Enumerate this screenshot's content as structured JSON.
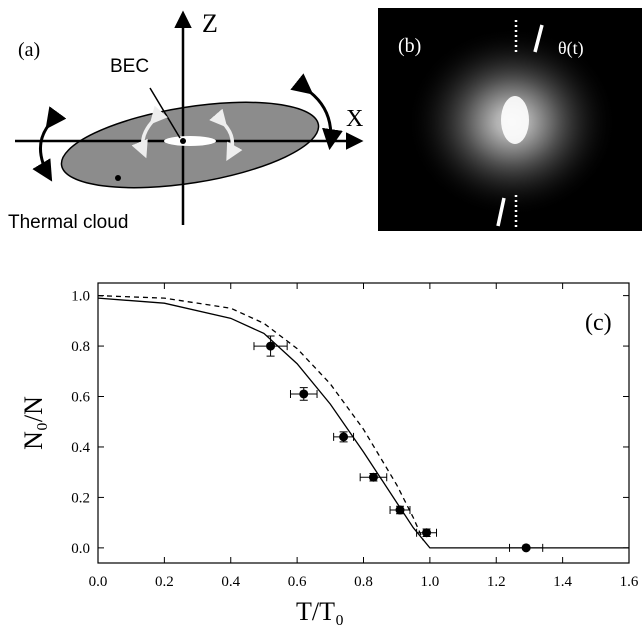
{
  "panel_a": {
    "label": "(a)",
    "axis_z": "Z",
    "axis_x": "X",
    "bec": "BEC",
    "thermal": "Thermal cloud"
  },
  "panel_b": {
    "label": "(b)",
    "angle": "θ(t)"
  },
  "chart_data": {
    "type": "scatter",
    "label": "(c)",
    "xlabel": "T/T₀",
    "ylabel": "N₀/N",
    "xlim": [
      0,
      1.6
    ],
    "ylim": [
      -0.06,
      1.05
    ],
    "xticks": [
      {
        "value": 0,
        "label": "0.0"
      },
      0.2,
      0.4,
      0.6,
      0.8,
      {
        "value": 1,
        "label": "1.0"
      },
      1.2,
      1.4,
      1.6
    ],
    "yticks": [
      {
        "value": 0,
        "label": "0.0"
      },
      0.2,
      0.4,
      0.6,
      0.8,
      {
        "value": 1,
        "label": "1.0"
      }
    ],
    "color": "#000000",
    "series": [
      {
        "type": "scatter",
        "x": [
          0.52,
          0.62,
          0.74,
          0.83,
          0.91,
          0.99,
          1.29
        ],
        "values": [
          0.8,
          0.61,
          0.44,
          0.28,
          0.15,
          0.06,
          0.0
        ],
        "xerr": [
          0.05,
          0.04,
          0.03,
          0.04,
          0.03,
          0.03,
          0.05
        ],
        "yerr": [
          0.04,
          0.025,
          0.02,
          0.015,
          0.015,
          0.015,
          0.005
        ]
      },
      {
        "type": "line",
        "style": "solid",
        "x": [
          0,
          0.2,
          0.4,
          0.5,
          0.6,
          0.7,
          0.8,
          0.9,
          0.95,
          1.0,
          1.6
        ],
        "values": [
          0.99,
          0.97,
          0.91,
          0.85,
          0.73,
          0.57,
          0.38,
          0.18,
          0.08,
          0,
          0
        ]
      },
      {
        "type": "line",
        "style": "dashed",
        "x": [
          0,
          0.2,
          0.4,
          0.5,
          0.6,
          0.7,
          0.8,
          0.9,
          0.95,
          0.98
        ],
        "values": [
          1.0,
          0.99,
          0.95,
          0.89,
          0.79,
          0.65,
          0.47,
          0.25,
          0.12,
          0.03
        ]
      }
    ]
  }
}
